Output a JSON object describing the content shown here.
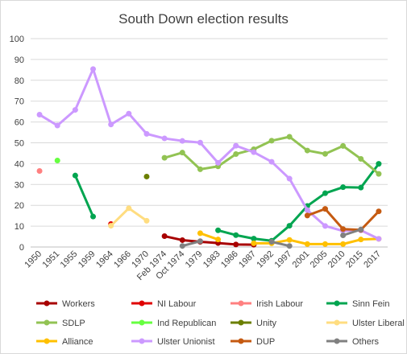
{
  "chart_data": {
    "type": "line",
    "title": "South Down election results",
    "categories": [
      "1950",
      "1951",
      "1955",
      "1959",
      "1964",
      "1966",
      "1970",
      "Feb 1974",
      "Oct 1974",
      "1979",
      "1983",
      "1986",
      "1987",
      "1992",
      "1997",
      "2001",
      "2005",
      "2010",
      "2015",
      "2017"
    ],
    "ylim": [
      0,
      100
    ],
    "yticks": [
      0,
      10,
      20,
      30,
      40,
      50,
      60,
      70,
      80,
      90,
      100
    ],
    "grid": true,
    "legend_position": "bottom",
    "series": [
      {
        "name": "Workers",
        "color": "#a80000",
        "values": [
          null,
          null,
          null,
          null,
          null,
          null,
          null,
          5.2,
          3.3,
          2.5,
          1.9,
          1.2,
          1.1,
          null,
          null,
          null,
          null,
          null,
          null,
          null
        ]
      },
      {
        "name": "NI Labour",
        "color": "#e00000",
        "values": [
          null,
          null,
          null,
          null,
          11.0,
          null,
          null,
          null,
          null,
          null,
          null,
          null,
          null,
          null,
          null,
          null,
          null,
          null,
          null,
          null
        ]
      },
      {
        "name": "Irish Labour",
        "color": "#ff8080",
        "values": [
          36.5,
          null,
          null,
          null,
          null,
          null,
          null,
          null,
          null,
          null,
          null,
          null,
          null,
          null,
          null,
          null,
          null,
          null,
          null,
          null
        ]
      },
      {
        "name": "Sinn Fein",
        "color": "#00a550",
        "values": [
          null,
          null,
          34.3,
          14.6,
          null,
          null,
          null,
          null,
          null,
          null,
          8.0,
          5.7,
          4.0,
          3.0,
          10.2,
          19.7,
          25.8,
          28.7,
          28.5,
          39.9
        ]
      },
      {
        "name": "SDLP",
        "color": "#92c353",
        "values": [
          null,
          null,
          null,
          null,
          null,
          null,
          null,
          42.8,
          45.3,
          37.3,
          38.7,
          44.6,
          46.9,
          51.0,
          52.9,
          46.3,
          44.7,
          48.5,
          42.3,
          35.1
        ]
      },
      {
        "name": "Ind Republican",
        "color": "#66ff40",
        "values": [
          null,
          41.5,
          null,
          null,
          null,
          null,
          null,
          null,
          null,
          null,
          null,
          null,
          null,
          null,
          null,
          null,
          null,
          null,
          null,
          null
        ]
      },
      {
        "name": "Unity",
        "color": "#6b7f00",
        "values": [
          null,
          null,
          null,
          null,
          null,
          null,
          33.8,
          null,
          null,
          null,
          null,
          null,
          null,
          null,
          null,
          null,
          null,
          null,
          null,
          null
        ]
      },
      {
        "name": "Ulster Liberal",
        "color": "#ffdd80",
        "values": [
          null,
          null,
          null,
          null,
          10.2,
          18.6,
          12.6,
          null,
          null,
          null,
          null,
          null,
          null,
          null,
          null,
          null,
          null,
          null,
          null,
          null
        ]
      },
      {
        "name": "Alliance",
        "color": "#ffc000",
        "values": [
          null,
          null,
          null,
          null,
          null,
          null,
          null,
          null,
          null,
          6.6,
          3.6,
          null,
          1.8,
          1.8,
          3.4,
          1.4,
          1.4,
          1.4,
          3.6,
          3.9
        ]
      },
      {
        "name": "Ulster Unionist",
        "color": "#cc99ff",
        "values": [
          63.5,
          58.3,
          65.8,
          85.4,
          58.8,
          64.0,
          54.3,
          52.1,
          50.9,
          50.1,
          40.4,
          48.6,
          45.5,
          40.9,
          32.8,
          17.7,
          10.1,
          7.7,
          8.0,
          3.9
        ]
      },
      {
        "name": "DUP",
        "color": "#c55a11",
        "values": [
          null,
          null,
          null,
          null,
          null,
          null,
          null,
          null,
          null,
          null,
          null,
          null,
          null,
          null,
          null,
          15.1,
          18.3,
          8.6,
          8.2,
          17.1
        ]
      },
      {
        "name": "Others",
        "color": "#808080",
        "values": [
          null,
          null,
          null,
          null,
          null,
          null,
          null,
          null,
          0.5,
          2.8,
          null,
          null,
          null,
          2.5,
          0.5,
          null,
          null,
          5.6,
          8.4,
          null
        ]
      }
    ]
  }
}
